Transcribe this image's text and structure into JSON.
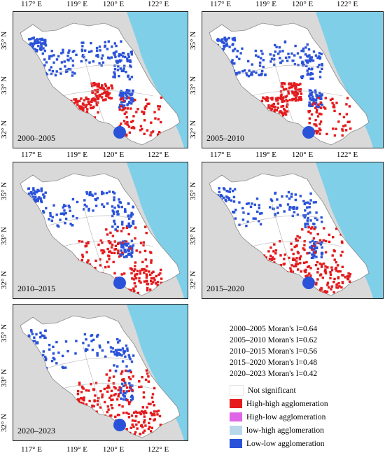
{
  "x_ticks": [
    "117° E",
    "119° E",
    "120° E",
    "122° E"
  ],
  "y_ticks": [
    "35° N",
    "33° N",
    "32° N"
  ],
  "panels": [
    {
      "label": "2000–2005"
    },
    {
      "label": "2005–2010"
    },
    {
      "label": "2010–2015"
    },
    {
      "label": "2015–2020"
    },
    {
      "label": "2020–2023"
    }
  ],
  "moran": [
    "2000–2005 Moran's I=0.64",
    "2005–2010 Moran's I=0.62",
    "2010–2015 Moran's I=0.56",
    "2015–2020 Moran's I=0.48",
    "2020–2023 Moran's I=0.42"
  ],
  "legend": [
    {
      "label": "Not significant",
      "color": "#ffffff"
    },
    {
      "label": "High-high agglomeration",
      "color": "#e41a1c"
    },
    {
      "label": "High-low agglomeration",
      "color": "#e066e8"
    },
    {
      "label": "low-high agglomeration",
      "color": "#b8d8ea"
    },
    {
      "label": "Low-low agglomeration",
      "color": "#2a52d9"
    }
  ],
  "colors": {
    "sea": "#7fcfe8",
    "land_outside": "#d9d9d9",
    "province": "#ffffff",
    "hh": "#e41a1c",
    "ll": "#2a52d9"
  }
}
